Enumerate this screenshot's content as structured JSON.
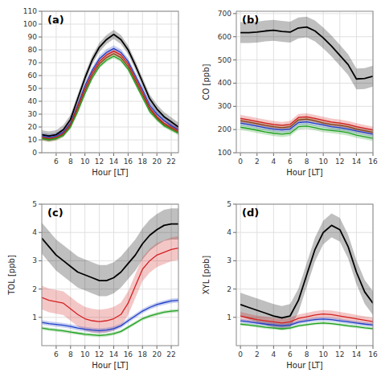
{
  "chart_data": [
    {
      "type": "line",
      "title": "(a)",
      "x_label": "Hour [LT]",
      "x": [
        4,
        5,
        6,
        7,
        8,
        9,
        10,
        11,
        12,
        13,
        14,
        15,
        16,
        17,
        18,
        19,
        20,
        21,
        22,
        23
      ],
      "xlim": [
        4,
        23
      ],
      "xticks": [
        6,
        8,
        10,
        12,
        14,
        16,
        18,
        20,
        22
      ],
      "ylim": [
        0,
        110
      ],
      "yticks": [
        0,
        10,
        20,
        30,
        40,
        50,
        60,
        70,
        80,
        90,
        100,
        110
      ],
      "grid": true,
      "series": [
        {
          "color": "#000000",
          "band_half": 3.5,
          "values": [
            14,
            13,
            14,
            18,
            26,
            42,
            58,
            72,
            82,
            88,
            92,
            88,
            80,
            68,
            55,
            42,
            34,
            28,
            24,
            20
          ]
        },
        {
          "color": "#2040c8",
          "band_half": 2.5,
          "values": [
            13,
            12,
            13,
            16,
            23,
            37,
            52,
            64,
            73,
            78,
            81,
            78,
            71,
            60,
            49,
            37,
            30,
            25,
            21,
            18
          ]
        },
        {
          "color": "#d42020",
          "band_half": 2.5,
          "values": [
            12,
            11,
            12,
            15,
            22,
            36,
            50,
            62,
            71,
            76,
            79,
            76,
            69,
            58,
            47,
            35,
            28,
            23,
            20,
            17
          ]
        },
        {
          "color": "#8B4513",
          "band_half": 1.5,
          "values": [
            11.5,
            10.5,
            11.5,
            14,
            21,
            34,
            48,
            60,
            69,
            74,
            77,
            74,
            67,
            56,
            45,
            34,
            27,
            22,
            19,
            16
          ]
        },
        {
          "color": "#20a020",
          "band_half": 1.5,
          "values": [
            11,
            10,
            11,
            13.5,
            20,
            32,
            46,
            58,
            67,
            72,
            75,
            72,
            65,
            54,
            43,
            32,
            26,
            21,
            18,
            15
          ]
        }
      ]
    },
    {
      "type": "line",
      "title": "(b)",
      "x_label": "Hour [LT]",
      "y_label": "CO [ppb]",
      "x": [
        0,
        1,
        2,
        3,
        4,
        5,
        6,
        7,
        8,
        9,
        10,
        11,
        12,
        13,
        14,
        15,
        16
      ],
      "xlim": [
        -0.5,
        16
      ],
      "xticks": [
        0,
        2,
        4,
        6,
        8,
        10,
        12,
        14,
        16
      ],
      "ylim": [
        100,
        710
      ],
      "yticks": [
        100,
        200,
        300,
        400,
        500,
        600,
        700
      ],
      "grid": true,
      "series": [
        {
          "color": "#000000",
          "band_half": 45,
          "values": [
            618,
            618,
            620,
            625,
            628,
            623,
            620,
            638,
            642,
            625,
            595,
            560,
            520,
            480,
            418,
            420,
            430
          ]
        },
        {
          "color": "#d42020",
          "band_half": 15,
          "values": [
            248,
            242,
            235,
            228,
            222,
            218,
            222,
            252,
            255,
            248,
            240,
            232,
            228,
            222,
            212,
            205,
            198
          ]
        },
        {
          "color": "#2040c8",
          "band_half": 12,
          "values": [
            228,
            222,
            215,
            208,
            202,
            198,
            202,
            230,
            233,
            226,
            220,
            212,
            208,
            202,
            194,
            187,
            180
          ]
        },
        {
          "color": "#8B4513",
          "band_half": 13,
          "values": [
            238,
            232,
            225,
            218,
            212,
            208,
            212,
            242,
            245,
            238,
            228,
            222,
            218,
            212,
            202,
            195,
            188
          ]
        },
        {
          "color": "#20a020",
          "band_half": 12,
          "values": [
            210,
            204,
            197,
            190,
            184,
            180,
            184,
            212,
            215,
            208,
            200,
            196,
            192,
            186,
            176,
            169,
            162
          ]
        }
      ]
    },
    {
      "type": "line",
      "title": "(c)",
      "x_label": "Hour [LT]",
      "y_label": "TOL [ppb]",
      "x": [
        4,
        5,
        6,
        7,
        8,
        9,
        10,
        11,
        12,
        13,
        14,
        15,
        16,
        17,
        18,
        19,
        20,
        21,
        22,
        23
      ],
      "xlim": [
        4,
        23
      ],
      "xticks": [
        6,
        8,
        10,
        12,
        14,
        16,
        18,
        20,
        22
      ],
      "ylim": [
        0,
        5
      ],
      "yticks": [
        1,
        2,
        3,
        4,
        5
      ],
      "grid": true,
      "series": [
        {
          "color": "#000000",
          "band_half": 0.55,
          "values": [
            3.8,
            3.5,
            3.2,
            3.0,
            2.8,
            2.6,
            2.5,
            2.4,
            2.3,
            2.3,
            2.4,
            2.6,
            2.9,
            3.2,
            3.6,
            3.9,
            4.1,
            4.25,
            4.3,
            4.3
          ]
        },
        {
          "color": "#d42020",
          "band_half": 0.42,
          "values": [
            1.7,
            1.6,
            1.55,
            1.5,
            1.3,
            1.1,
            0.95,
            0.88,
            0.85,
            0.88,
            0.95,
            1.1,
            1.5,
            2.1,
            2.7,
            3.0,
            3.2,
            3.3,
            3.4,
            3.45
          ]
        },
        {
          "color": "#2040c8",
          "band_half": 0.08,
          "values": [
            0.82,
            0.78,
            0.75,
            0.72,
            0.68,
            0.62,
            0.58,
            0.55,
            0.53,
            0.55,
            0.6,
            0.7,
            0.88,
            1.05,
            1.22,
            1.35,
            1.45,
            1.52,
            1.58,
            1.6
          ]
        },
        {
          "color": "#20a020",
          "band_half": 0.06,
          "values": [
            0.62,
            0.58,
            0.55,
            0.52,
            0.48,
            0.44,
            0.4,
            0.38,
            0.36,
            0.38,
            0.42,
            0.5,
            0.65,
            0.8,
            0.95,
            1.05,
            1.12,
            1.18,
            1.22,
            1.24
          ]
        }
      ]
    },
    {
      "type": "line",
      "title": "(d)",
      "x_label": "Hour [LT]",
      "y_label": "XYL [ppb]",
      "x": [
        0,
        1,
        2,
        3,
        4,
        5,
        6,
        7,
        8,
        9,
        10,
        11,
        12,
        13,
        14,
        15,
        16
      ],
      "xlim": [
        -0.5,
        16
      ],
      "xticks": [
        0,
        2,
        4,
        6,
        8,
        10,
        12,
        14,
        16
      ],
      "ylim": [
        0,
        5
      ],
      "yticks": [
        1,
        2,
        3,
        4,
        5
      ],
      "grid": true,
      "series": [
        {
          "color": "#000000",
          "band_half": 0.42,
          "values": [
            1.45,
            1.35,
            1.25,
            1.15,
            1.05,
            0.98,
            1.05,
            1.6,
            2.5,
            3.4,
            4.0,
            4.25,
            4.1,
            3.5,
            2.6,
            1.9,
            1.5
          ]
        },
        {
          "color": "#d42020",
          "band_half": 0.14,
          "values": [
            1.05,
            0.98,
            0.92,
            0.88,
            0.84,
            0.8,
            0.84,
            0.96,
            1.02,
            1.08,
            1.12,
            1.1,
            1.05,
            1.0,
            0.95,
            0.9,
            0.85
          ]
        },
        {
          "color": "#2040c8",
          "band_half": 0.07,
          "values": [
            0.88,
            0.84,
            0.8,
            0.76,
            0.73,
            0.7,
            0.73,
            0.83,
            0.88,
            0.92,
            0.94,
            0.92,
            0.88,
            0.84,
            0.8,
            0.76,
            0.73
          ]
        },
        {
          "color": "#20a020",
          "band_half": 0.05,
          "values": [
            0.76,
            0.73,
            0.69,
            0.65,
            0.62,
            0.59,
            0.62,
            0.7,
            0.74,
            0.78,
            0.8,
            0.78,
            0.74,
            0.7,
            0.67,
            0.63,
            0.6
          ]
        }
      ]
    }
  ]
}
